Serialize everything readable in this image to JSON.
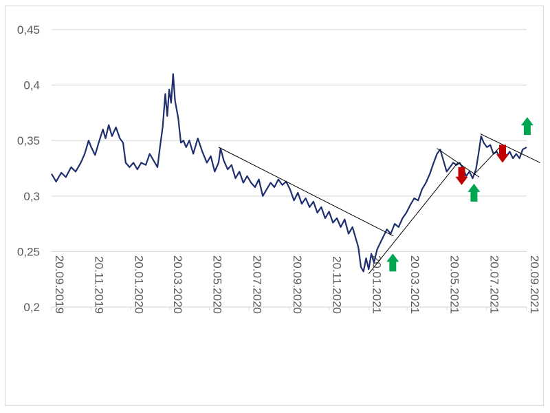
{
  "chart_data": {
    "type": "line",
    "title": "",
    "xlabel": "",
    "ylabel": "",
    "ylim": [
      0.2,
      0.45
    ],
    "xlim": [
      "2019-09-20",
      "2021-09-20"
    ],
    "grid": "horizontal",
    "legend": "none",
    "y_ticks": [
      "0,2",
      "0,25",
      "0,3",
      "0,35",
      "0,4",
      "0,45"
    ],
    "y_tick_values": [
      0.2,
      0.25,
      0.3,
      0.35,
      0.4,
      0.45
    ],
    "x_ticks": [
      {
        "label": "20.09.2019",
        "date": "2019-09-20"
      },
      {
        "label": "20.11.2019",
        "date": "2019-11-20"
      },
      {
        "label": "20.01.2020",
        "date": "2020-01-20"
      },
      {
        "label": "20.03.2020",
        "date": "2020-03-20"
      },
      {
        "label": "20.05.2020",
        "date": "2020-05-20"
      },
      {
        "label": "20.07.2020",
        "date": "2020-07-20"
      },
      {
        "label": "20.09.2020",
        "date": "2020-09-20"
      },
      {
        "label": "20.11.2020",
        "date": "2020-11-20"
      },
      {
        "label": "20.01.2021",
        "date": "2021-01-20"
      },
      {
        "label": "20.03.2021",
        "date": "2021-03-20"
      },
      {
        "label": "20.05.2021",
        "date": "2021-05-20"
      },
      {
        "label": "20.07.2021",
        "date": "2021-07-20"
      },
      {
        "label": "20.09.2021",
        "date": "2021-09-20"
      }
    ],
    "series": [
      {
        "color": "#1f2f6e",
        "points": [
          [
            "2019-09-20",
            0.32
          ],
          [
            "2019-09-27",
            0.313
          ],
          [
            "2019-10-05",
            0.321
          ],
          [
            "2019-10-12",
            0.317
          ],
          [
            "2019-10-20",
            0.326
          ],
          [
            "2019-10-27",
            0.322
          ],
          [
            "2019-11-04",
            0.33
          ],
          [
            "2019-11-10",
            0.338
          ],
          [
            "2019-11-16",
            0.35
          ],
          [
            "2019-11-20",
            0.344
          ],
          [
            "2019-11-26",
            0.337
          ],
          [
            "2019-12-02",
            0.349
          ],
          [
            "2019-12-08",
            0.36
          ],
          [
            "2019-12-12",
            0.352
          ],
          [
            "2019-12-17",
            0.364
          ],
          [
            "2019-12-22",
            0.354
          ],
          [
            "2019-12-28",
            0.362
          ],
          [
            "2020-01-03",
            0.352
          ],
          [
            "2020-01-08",
            0.348
          ],
          [
            "2020-01-12",
            0.33
          ],
          [
            "2020-01-18",
            0.326
          ],
          [
            "2020-01-24",
            0.33
          ],
          [
            "2020-01-30",
            0.324
          ],
          [
            "2020-02-05",
            0.33
          ],
          [
            "2020-02-12",
            0.328
          ],
          [
            "2020-02-18",
            0.338
          ],
          [
            "2020-02-24",
            0.332
          ],
          [
            "2020-03-01",
            0.326
          ],
          [
            "2020-03-05",
            0.345
          ],
          [
            "2020-03-09",
            0.362
          ],
          [
            "2020-03-13",
            0.392
          ],
          [
            "2020-03-16",
            0.372
          ],
          [
            "2020-03-19",
            0.396
          ],
          [
            "2020-03-22",
            0.384
          ],
          [
            "2020-03-25",
            0.41
          ],
          [
            "2020-03-28",
            0.386
          ],
          [
            "2020-04-02",
            0.37
          ],
          [
            "2020-04-06",
            0.348
          ],
          [
            "2020-04-10",
            0.35
          ],
          [
            "2020-04-14",
            0.344
          ],
          [
            "2020-04-19",
            0.35
          ],
          [
            "2020-04-25",
            0.338
          ],
          [
            "2020-05-02",
            0.352
          ],
          [
            "2020-05-09",
            0.34
          ],
          [
            "2020-05-16",
            0.33
          ],
          [
            "2020-05-22",
            0.336
          ],
          [
            "2020-05-28",
            0.322
          ],
          [
            "2020-06-03",
            0.33
          ],
          [
            "2020-06-06",
            0.343
          ],
          [
            "2020-06-11",
            0.332
          ],
          [
            "2020-06-17",
            0.324
          ],
          [
            "2020-06-23",
            0.328
          ],
          [
            "2020-06-29",
            0.316
          ],
          [
            "2020-07-05",
            0.322
          ],
          [
            "2020-07-11",
            0.312
          ],
          [
            "2020-07-17",
            0.318
          ],
          [
            "2020-07-23",
            0.312
          ],
          [
            "2020-07-29",
            0.308
          ],
          [
            "2020-08-04",
            0.315
          ],
          [
            "2020-08-10",
            0.3
          ],
          [
            "2020-08-16",
            0.306
          ],
          [
            "2020-08-22",
            0.312
          ],
          [
            "2020-08-28",
            0.308
          ],
          [
            "2020-09-03",
            0.315
          ],
          [
            "2020-09-09",
            0.31
          ],
          [
            "2020-09-15",
            0.313
          ],
          [
            "2020-09-21",
            0.306
          ],
          [
            "2020-09-27",
            0.296
          ],
          [
            "2020-10-03",
            0.303
          ],
          [
            "2020-10-09",
            0.293
          ],
          [
            "2020-10-15",
            0.298
          ],
          [
            "2020-10-21",
            0.29
          ],
          [
            "2020-10-27",
            0.295
          ],
          [
            "2020-11-02",
            0.285
          ],
          [
            "2020-11-08",
            0.29
          ],
          [
            "2020-11-14",
            0.28
          ],
          [
            "2020-11-20",
            0.286
          ],
          [
            "2020-11-26",
            0.276
          ],
          [
            "2020-12-02",
            0.28
          ],
          [
            "2020-12-08",
            0.272
          ],
          [
            "2020-12-14",
            0.279
          ],
          [
            "2020-12-20",
            0.266
          ],
          [
            "2020-12-26",
            0.272
          ],
          [
            "2020-12-31",
            0.262
          ],
          [
            "2021-01-04",
            0.254
          ],
          [
            "2021-01-08",
            0.236
          ],
          [
            "2021-01-12",
            0.232
          ],
          [
            "2021-01-16",
            0.244
          ],
          [
            "2021-01-20",
            0.234
          ],
          [
            "2021-01-24",
            0.248
          ],
          [
            "2021-01-28",
            0.24
          ],
          [
            "2021-02-02",
            0.252
          ],
          [
            "2021-02-07",
            0.258
          ],
          [
            "2021-02-12",
            0.264
          ],
          [
            "2021-02-17",
            0.27
          ],
          [
            "2021-02-23",
            0.266
          ],
          [
            "2021-03-01",
            0.275
          ],
          [
            "2021-03-07",
            0.272
          ],
          [
            "2021-03-13",
            0.28
          ],
          [
            "2021-03-19",
            0.285
          ],
          [
            "2021-03-25",
            0.292
          ],
          [
            "2021-03-31",
            0.298
          ],
          [
            "2021-04-06",
            0.296
          ],
          [
            "2021-04-12",
            0.306
          ],
          [
            "2021-04-18",
            0.312
          ],
          [
            "2021-04-24",
            0.32
          ],
          [
            "2021-04-30",
            0.33
          ],
          [
            "2021-05-05",
            0.338
          ],
          [
            "2021-05-10",
            0.342
          ],
          [
            "2021-05-15",
            0.332
          ],
          [
            "2021-05-20",
            0.322
          ],
          [
            "2021-05-25",
            0.326
          ],
          [
            "2021-05-30",
            0.33
          ],
          [
            "2021-06-04",
            0.328
          ],
          [
            "2021-06-09",
            0.33
          ],
          [
            "2021-06-14",
            0.325
          ],
          [
            "2021-06-19",
            0.318
          ],
          [
            "2021-06-24",
            0.322
          ],
          [
            "2021-06-29",
            0.316
          ],
          [
            "2021-07-04",
            0.324
          ],
          [
            "2021-07-08",
            0.338
          ],
          [
            "2021-07-12",
            0.354
          ],
          [
            "2021-07-16",
            0.348
          ],
          [
            "2021-07-21",
            0.344
          ],
          [
            "2021-07-26",
            0.346
          ],
          [
            "2021-07-31",
            0.338
          ],
          [
            "2021-08-05",
            0.34
          ],
          [
            "2021-08-10",
            0.335
          ],
          [
            "2021-08-15",
            0.342
          ],
          [
            "2021-08-20",
            0.336
          ],
          [
            "2021-08-25",
            0.34
          ],
          [
            "2021-08-30",
            0.334
          ],
          [
            "2021-09-04",
            0.338
          ],
          [
            "2021-09-09",
            0.334
          ],
          [
            "2021-09-14",
            0.342
          ],
          [
            "2021-09-20",
            0.344
          ]
        ]
      }
    ],
    "trendlines": [
      {
        "from": [
          "2020-06-03",
          0.344
        ],
        "to": [
          "2021-02-27",
          0.264
        ],
        "color": "#000000"
      },
      {
        "from": [
          "2021-01-20",
          0.23
        ],
        "to": [
          "2021-06-06",
          0.33
        ],
        "color": "#000000"
      },
      {
        "from": [
          "2021-05-05",
          0.343
        ],
        "to": [
          "2021-07-09",
          0.317
        ],
        "color": "#000000"
      },
      {
        "from": [
          "2021-07-02",
          0.32
        ],
        "to": [
          "2021-08-13",
          0.346
        ],
        "color": "#000000"
      },
      {
        "from": [
          "2021-07-11",
          0.356
        ],
        "to": [
          "2021-10-11",
          0.33
        ],
        "color": "#000000"
      }
    ],
    "annotations": [
      {
        "type": "arrow-up",
        "color": "#00a651",
        "date": "2021-02-26",
        "y": 0.232
      },
      {
        "type": "arrow-down",
        "color": "#c00000",
        "date": "2021-06-12",
        "y": 0.31
      },
      {
        "type": "arrow-up",
        "color": "#00a651",
        "date": "2021-07-01",
        "y": 0.295
      },
      {
        "type": "arrow-down",
        "color": "#c00000",
        "date": "2021-08-14",
        "y": 0.33
      },
      {
        "type": "arrow-up",
        "color": "#00a651",
        "date": "2021-09-21",
        "y": 0.355
      }
    ],
    "gridline_color": "#d9d9d9",
    "label_color": "#595959"
  }
}
